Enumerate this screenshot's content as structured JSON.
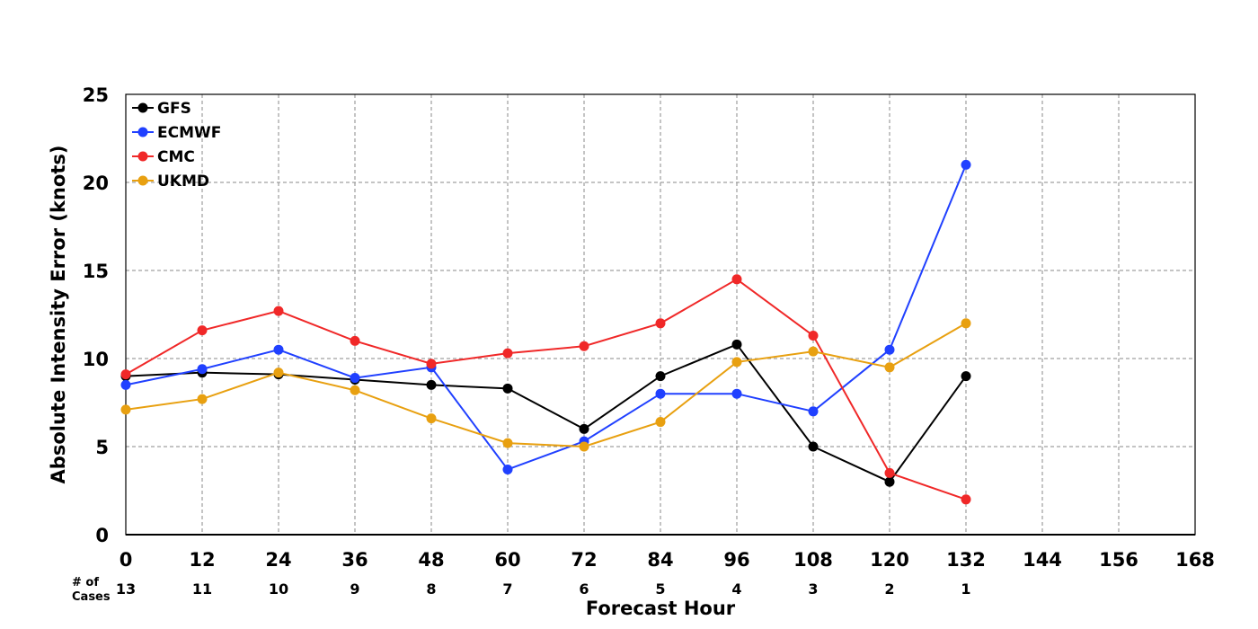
{
  "chart_data": {
    "type": "line",
    "xlabel": "Forecast Hour",
    "ylabel": "Absolute Intensity Error (knots)",
    "xlim": [
      0,
      168
    ],
    "ylim": [
      0,
      25
    ],
    "x_ticks": [
      0,
      12,
      24,
      36,
      48,
      60,
      72,
      84,
      96,
      108,
      120,
      132,
      144,
      156,
      168
    ],
    "y_ticks": [
      0,
      5,
      10,
      15,
      20,
      25
    ],
    "grid": true,
    "legend_position": "top-left",
    "cases_label_line1": "# of",
    "cases_label_line2": "Cases",
    "cases": [
      {
        "x": 0,
        "n": "13"
      },
      {
        "x": 12,
        "n": "11"
      },
      {
        "x": 24,
        "n": "10"
      },
      {
        "x": 36,
        "n": "9"
      },
      {
        "x": 48,
        "n": "8"
      },
      {
        "x": 60,
        "n": "7"
      },
      {
        "x": 72,
        "n": "6"
      },
      {
        "x": 84,
        "n": "5"
      },
      {
        "x": 96,
        "n": "4"
      },
      {
        "x": 108,
        "n": "3"
      },
      {
        "x": 120,
        "n": "2"
      },
      {
        "x": 132,
        "n": "1"
      }
    ],
    "series": [
      {
        "name": "GFS",
        "color": "#000000",
        "x": [
          0,
          12,
          24,
          36,
          48,
          60,
          72,
          84,
          96,
          108,
          120,
          132
        ],
        "values": [
          9.0,
          9.2,
          9.1,
          8.8,
          8.5,
          8.3,
          6.0,
          9.0,
          10.8,
          5.0,
          3.0,
          9.0
        ]
      },
      {
        "name": "ECMWF",
        "color": "#2040ff",
        "x": [
          0,
          12,
          24,
          36,
          48,
          60,
          72,
          84,
          96,
          108,
          120,
          132
        ],
        "values": [
          8.5,
          9.4,
          10.5,
          8.9,
          9.5,
          3.7,
          5.3,
          8.0,
          8.0,
          7.0,
          10.5,
          21.0
        ]
      },
      {
        "name": "CMC",
        "color": "#f02828",
        "x": [
          0,
          12,
          24,
          36,
          48,
          60,
          72,
          84,
          96,
          108,
          120,
          132
        ],
        "values": [
          9.1,
          11.6,
          12.7,
          11.0,
          9.7,
          10.3,
          10.7,
          12.0,
          14.5,
          11.3,
          3.5,
          2.0
        ]
      },
      {
        "name": "UKMD",
        "color": "#e8a010",
        "x": [
          0,
          12,
          24,
          36,
          48,
          60,
          72,
          84,
          96,
          108,
          120,
          132
        ],
        "values": [
          7.1,
          7.7,
          9.2,
          8.2,
          6.6,
          5.2,
          5.0,
          6.4,
          9.8,
          10.4,
          9.5,
          12.0
        ]
      }
    ]
  }
}
